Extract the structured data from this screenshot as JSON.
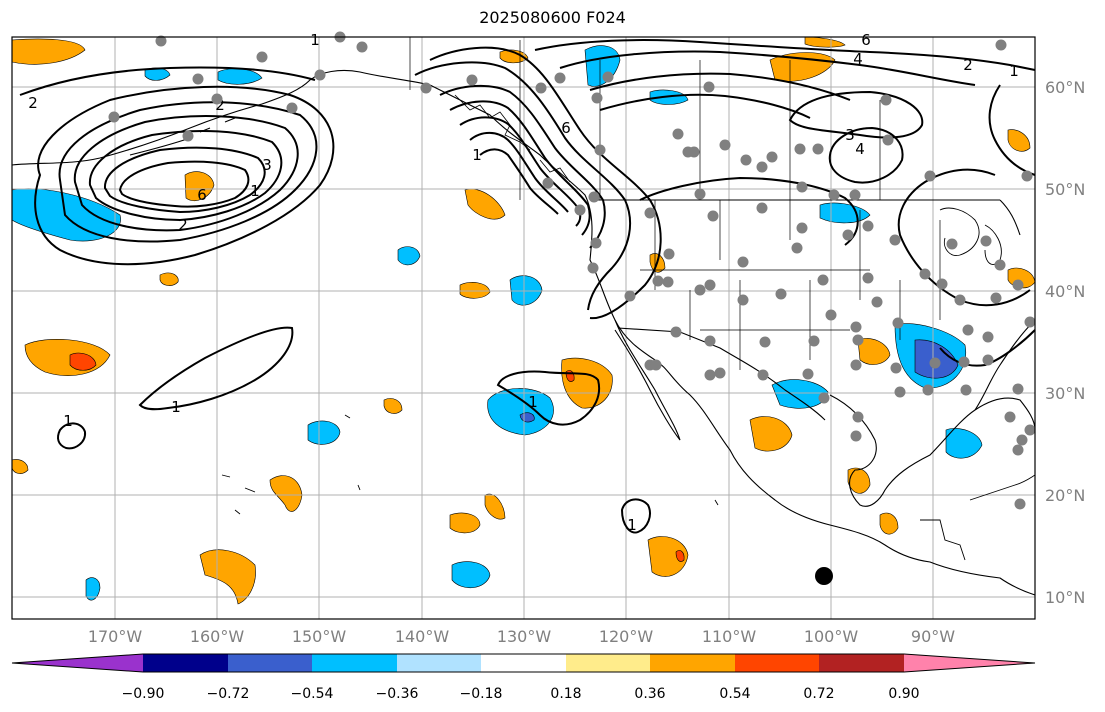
{
  "title": "2025080600 F024",
  "lat_labels": [
    "60°N",
    "50°N",
    "40°N",
    "30°N",
    "20°N",
    "10°N"
  ],
  "lon_labels": [
    "170°W",
    "160°W",
    "150°W",
    "140°W",
    "130°W",
    "120°W",
    "110°W",
    "100°W",
    "90°W"
  ],
  "colorbar": {
    "tick_labels": [
      "−0.90",
      "−0.72",
      "−0.54",
      "−0.36",
      "−0.18",
      "0.18",
      "0.36",
      "0.54",
      "0.72",
      "0.90"
    ],
    "colors": [
      "#9a32cd",
      "#00008b",
      "#3a5fcd",
      "#00bfff",
      "#b0e2ff",
      "#ffffff",
      "#ffec8b",
      "#ffa500",
      "#ff4500",
      "#b22222",
      "#ff82ab"
    ]
  },
  "contour_labels": [
    "2",
    "1",
    "2",
    "3",
    "6",
    "1",
    "2",
    "1",
    "6",
    "1",
    "4",
    "2",
    "1",
    "3",
    "4",
    "6",
    "1",
    "1",
    "1"
  ],
  "colors": {
    "grid": "#b0b0b0",
    "station": "#808080",
    "contour": "#000000"
  }
}
